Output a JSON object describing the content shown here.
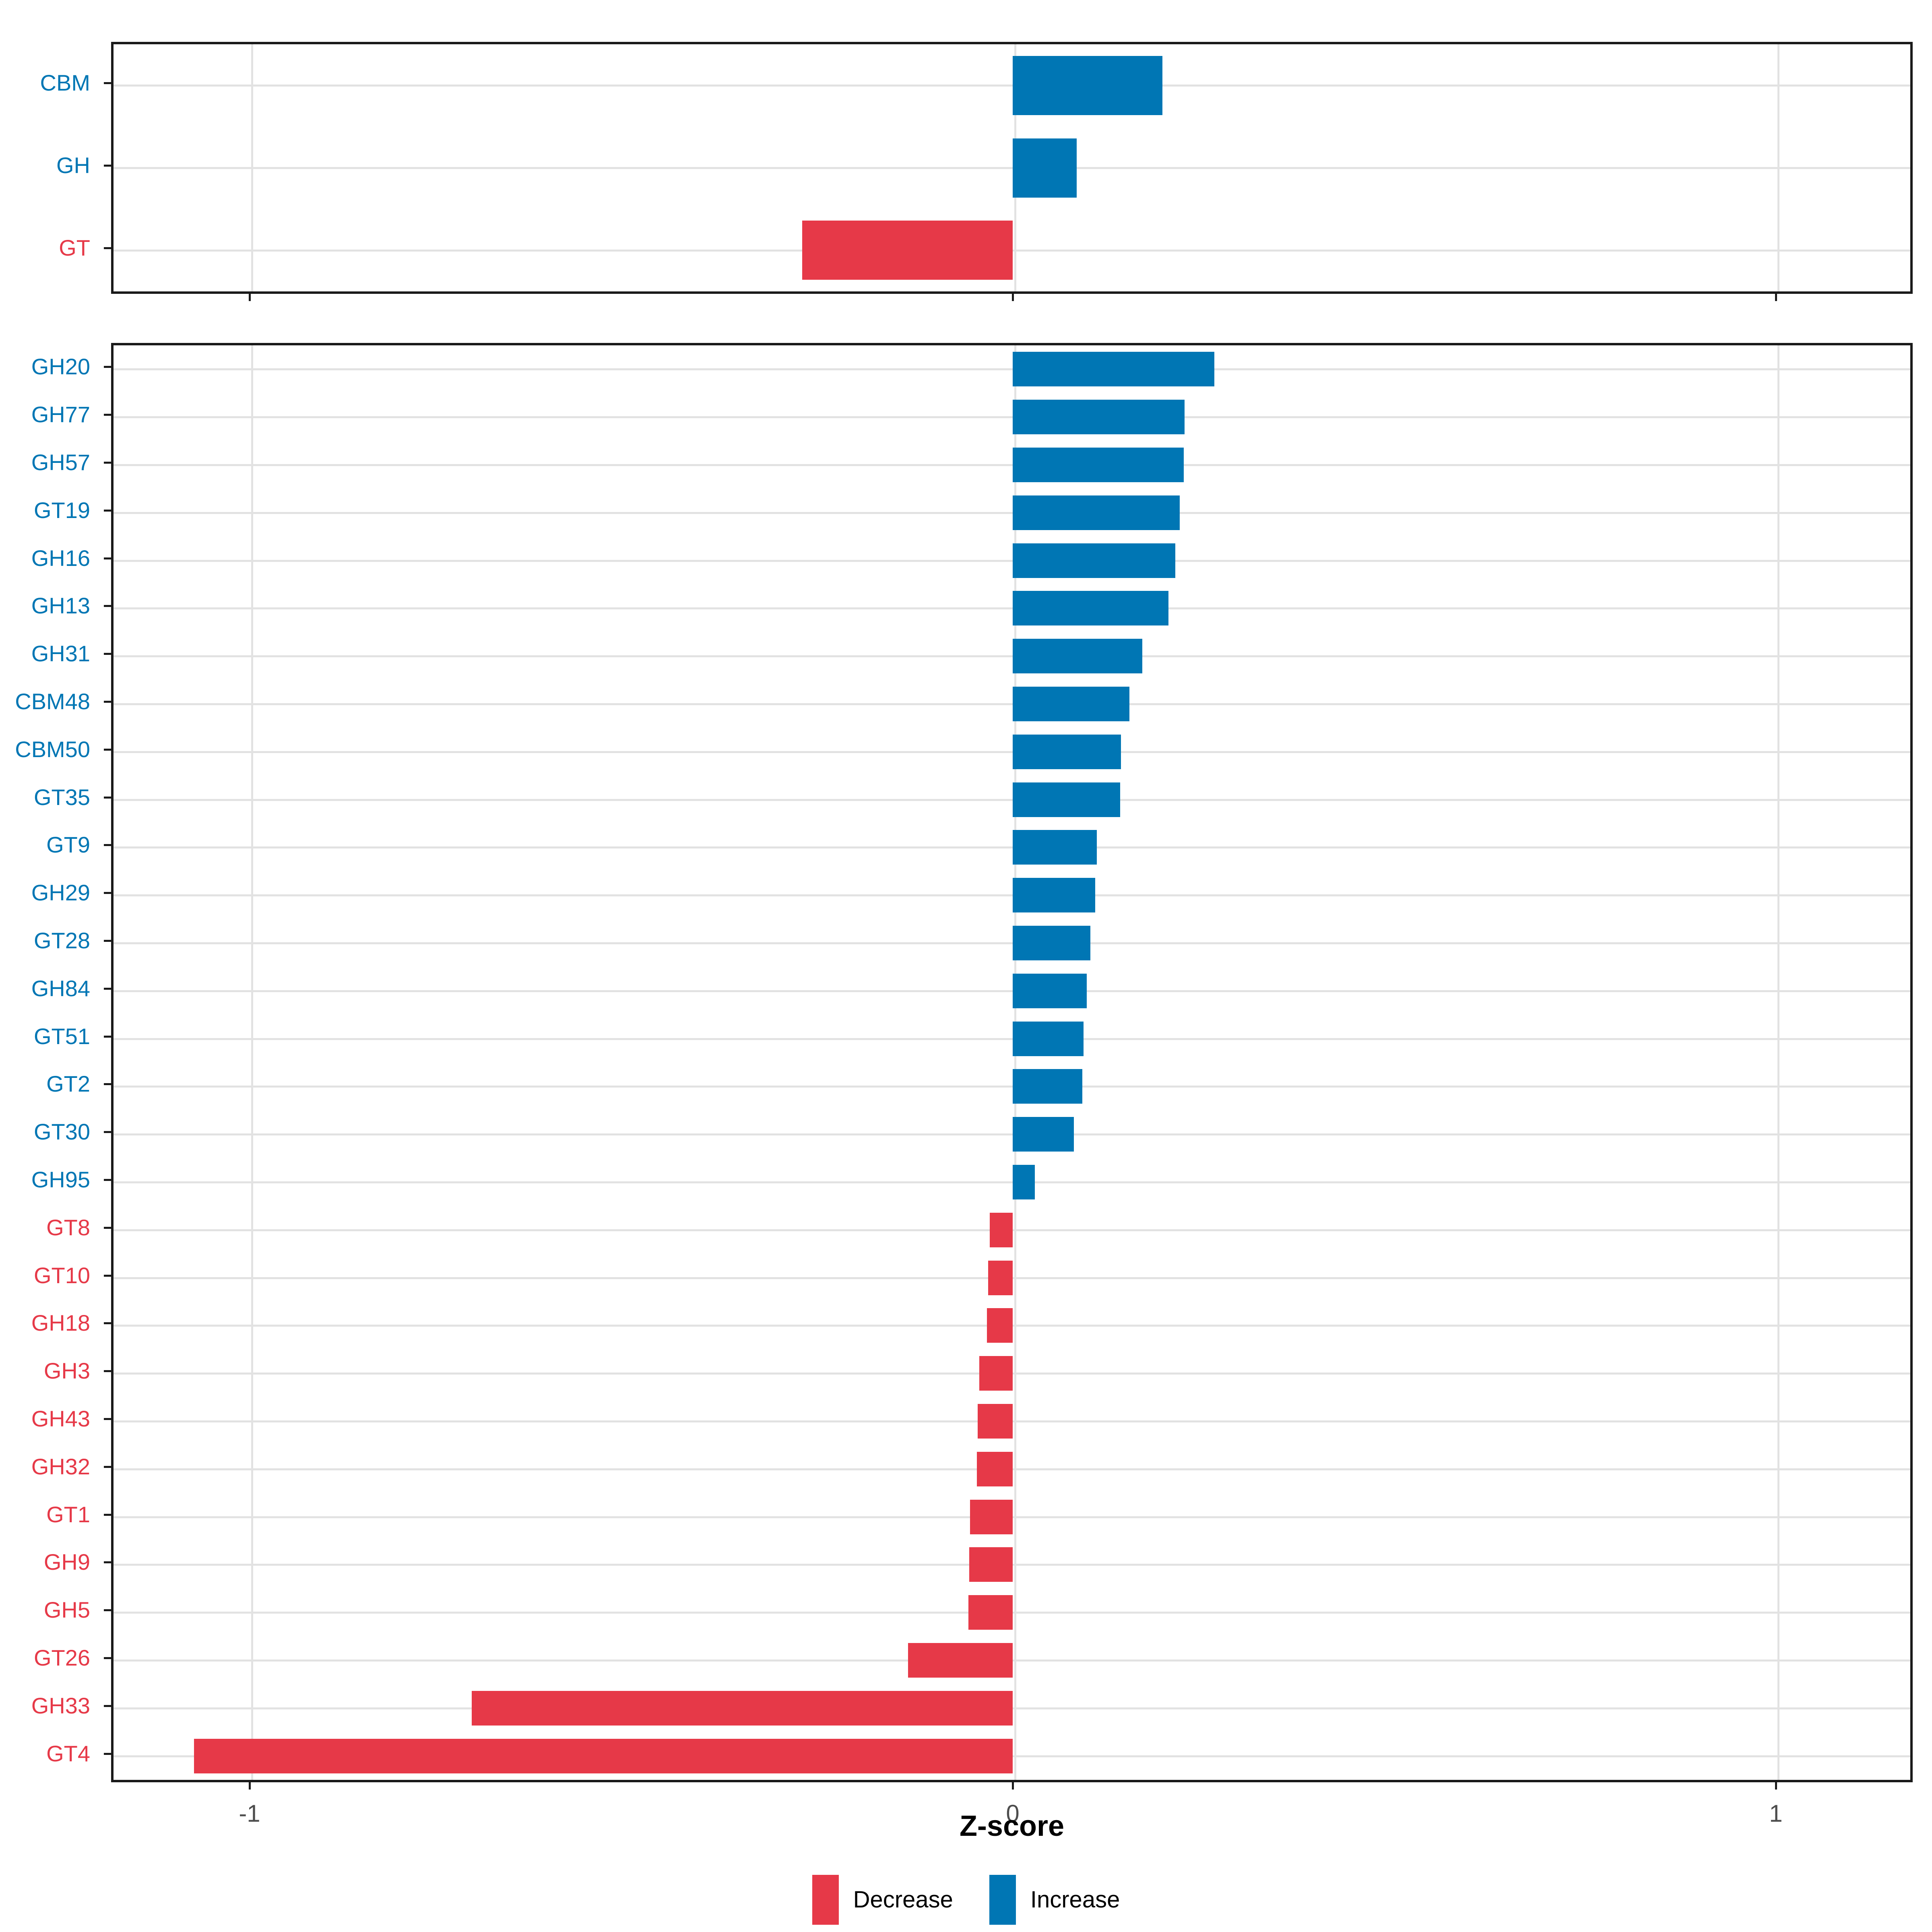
{
  "figure": {
    "xlabel": "Z-score",
    "x_tick_labels": [
      "-1",
      "0",
      "1"
    ],
    "x_tick_values": [
      -1,
      0,
      1
    ],
    "colors": {
      "increase": "#0076b4",
      "decrease": "#e63948",
      "grid": "#e2e2e2",
      "panel_border": "#1a1a1a",
      "tick_label": "#4d4d4d"
    },
    "legend": {
      "position": "bottom",
      "items": [
        {
          "label": "Decrease",
          "color": "#e63948"
        },
        {
          "label": "Increase",
          "color": "#0076b4"
        }
      ]
    }
  },
  "chart_data": [
    {
      "type": "bar",
      "orientation": "horizontal",
      "panel": "enzyme-class-summary",
      "categories": [
        "CBM",
        "GH",
        "GT"
      ],
      "values": [
        0.196,
        0.084,
        -0.276
      ],
      "directions": [
        "Increase",
        "Increase",
        "Decrease"
      ],
      "xlabel": "Z-score",
      "xlim": [
        -1.18,
        1.18
      ],
      "x_ticks": [
        -1,
        0,
        1
      ],
      "grid": true,
      "legend_position": "bottom"
    },
    {
      "type": "bar",
      "orientation": "horizontal",
      "panel": "enzyme-family-detail",
      "categories": [
        "GH20",
        "GH77",
        "GH57",
        "GT19",
        "GH16",
        "GH13",
        "GH31",
        "CBM48",
        "CBM50",
        "GT35",
        "GT9",
        "GH29",
        "GT28",
        "GH84",
        "GT51",
        "GT2",
        "GT30",
        "GH95",
        "GT8",
        "GT10",
        "GH18",
        "GH3",
        "GH43",
        "GH32",
        "GT1",
        "GH9",
        "GH5",
        "GT26",
        "GH33",
        "GT4"
      ],
      "values": [
        0.264,
        0.225,
        0.224,
        0.219,
        0.213,
        0.204,
        0.17,
        0.153,
        0.142,
        0.141,
        0.11,
        0.108,
        0.102,
        0.097,
        0.093,
        0.091,
        0.08,
        0.029,
        -0.03,
        -0.032,
        -0.034,
        -0.044,
        -0.046,
        -0.047,
        -0.056,
        -0.057,
        -0.058,
        -0.137,
        -0.709,
        -1.073
      ],
      "directions": [
        "Increase",
        "Increase",
        "Increase",
        "Increase",
        "Increase",
        "Increase",
        "Increase",
        "Increase",
        "Increase",
        "Increase",
        "Increase",
        "Increase",
        "Increase",
        "Increase",
        "Increase",
        "Increase",
        "Increase",
        "Increase",
        "Decrease",
        "Decrease",
        "Decrease",
        "Decrease",
        "Decrease",
        "Decrease",
        "Decrease",
        "Decrease",
        "Decrease",
        "Decrease",
        "Decrease",
        "Decrease"
      ],
      "xlabel": "Z-score",
      "xlim": [
        -1.18,
        1.18
      ],
      "x_ticks": [
        -1,
        0,
        1
      ],
      "grid": true,
      "legend_position": "bottom"
    }
  ]
}
